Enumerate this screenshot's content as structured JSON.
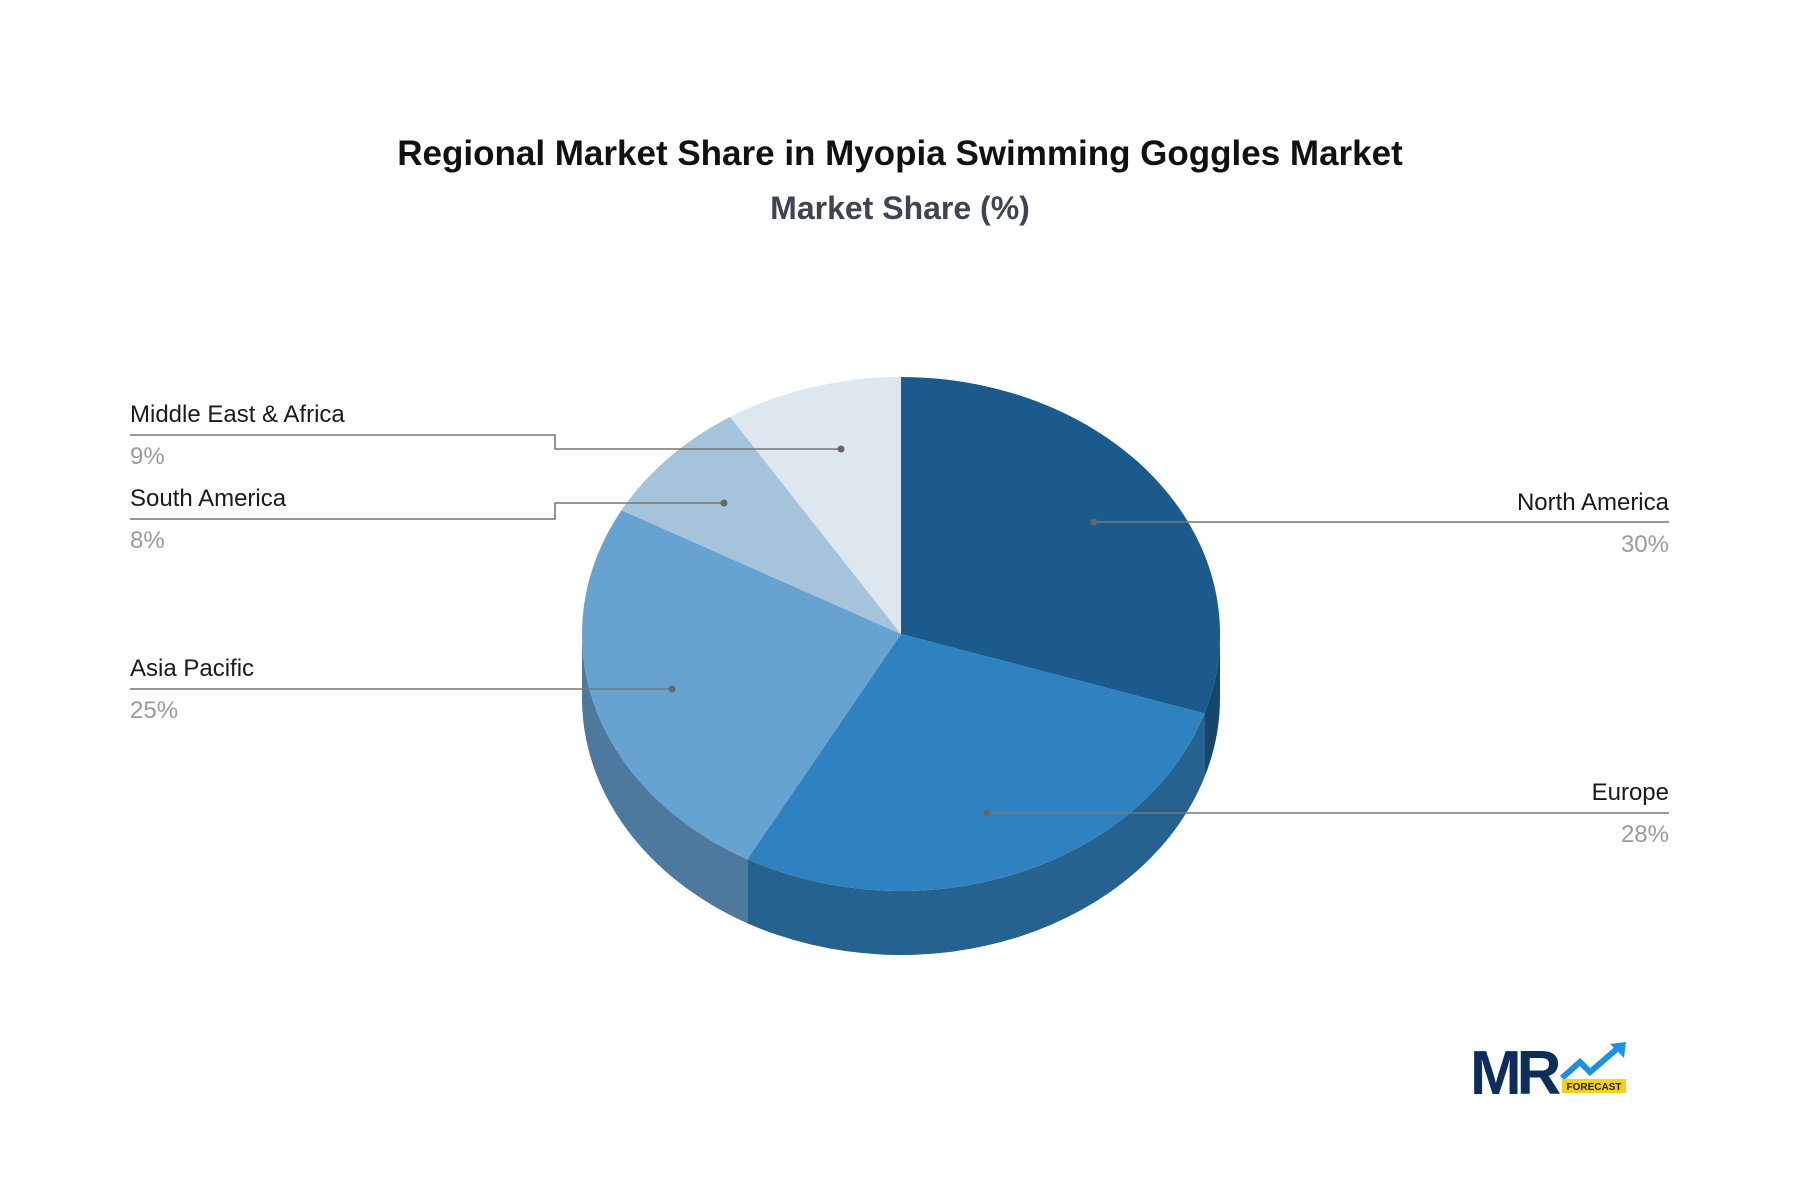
{
  "chart_data": {
    "type": "pie",
    "title": "Regional Market Share in Myopia Swimming Goggles Market",
    "subtitle": "Market Share (%)",
    "style": "3d",
    "categories": [
      "North America",
      "Europe",
      "Asia Pacific",
      "South America",
      "Middle East & Africa"
    ],
    "values": [
      30,
      28,
      25,
      8,
      9
    ],
    "value_labels": [
      "30%",
      "28%",
      "25%",
      "8%",
      "9%"
    ],
    "colors": [
      "#1b5a8c",
      "#2e82c0",
      "#67a3d1",
      "#a6c3dc",
      "#dde7ef"
    ],
    "side_colors": [
      "#17466c",
      "#25628f",
      "#4d799e",
      "#7f97ad",
      "#aab4be"
    ]
  },
  "logo": {
    "text": "MR",
    "tag": "FORECAST"
  }
}
